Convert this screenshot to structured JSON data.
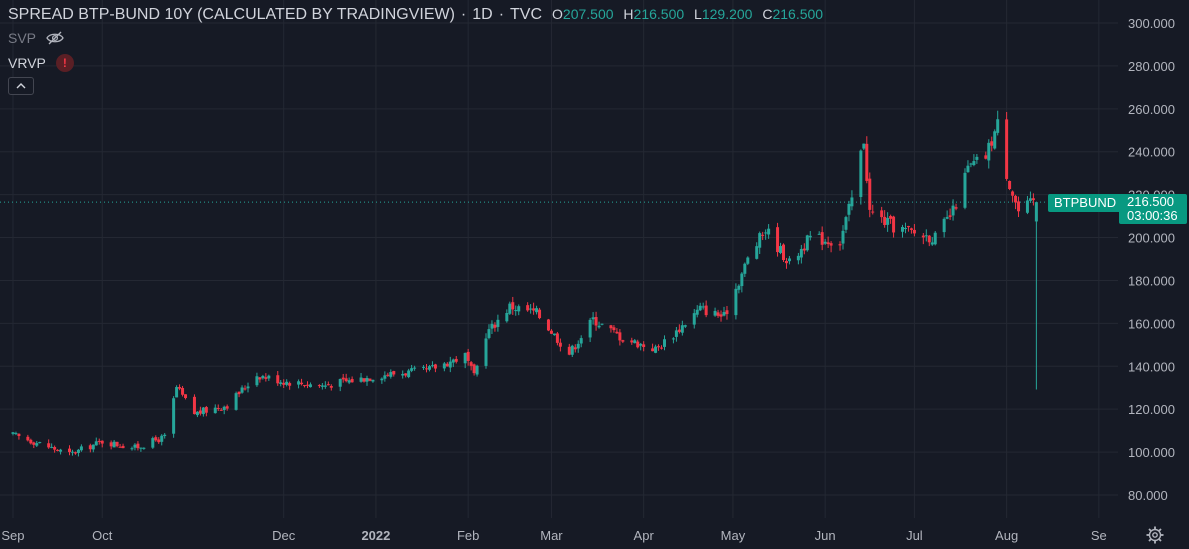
{
  "legend": {
    "title": "SPREAD BTP-BUND 10Y (CALCULATED BY TRADINGVIEW)",
    "interval": "1D",
    "exchange": "TVC",
    "o_label": "O",
    "o_value": "207.500",
    "h_label": "H",
    "h_value": "216.500",
    "l_label": "L",
    "l_value": "129.200",
    "c_label": "C",
    "c_value": "216.500"
  },
  "indicators": [
    {
      "name": "SVP",
      "icon": "eye-off-icon"
    },
    {
      "name": "VRVP",
      "icon": "warning-icon",
      "badge": "!"
    }
  ],
  "price_label": {
    "symbol": "BTPBUND",
    "price": "216.500",
    "countdown": "03:00:36"
  },
  "colors": {
    "background": "#161a25",
    "grid": "#242833",
    "up": "#26a69a",
    "down": "#f23645",
    "text": "#d1d4dc",
    "axis_text": "#b2b5be"
  },
  "chart_data": {
    "type": "candlestick",
    "title": "SPREAD BTP-BUND 10Y (CALCULATED BY TRADINGVIEW)",
    "ylim": [
      72,
      306
    ],
    "y_ticks": [
      "300.000",
      "280.000",
      "260.000",
      "240.000",
      "220.000",
      "200.000",
      "180.000",
      "160.000",
      "140.000",
      "120.000",
      "100.000",
      "80.000"
    ],
    "x_tick_labels": [
      "Sep",
      "Oct",
      "Dec",
      "2022",
      "Feb",
      "Mar",
      "Apr",
      "May",
      "Jun",
      "Jul",
      "Aug",
      "Se"
    ],
    "grid": true,
    "anchors": [
      [
        "2021-09-01",
        108
      ],
      [
        "2021-09-10",
        104
      ],
      [
        "2021-09-20",
        99
      ],
      [
        "2021-10-01",
        105
      ],
      [
        "2021-10-12",
        102
      ],
      [
        "2021-10-22",
        107
      ],
      [
        "2021-10-26",
        130
      ],
      [
        "2021-11-01",
        118
      ],
      [
        "2021-11-12",
        122
      ],
      [
        "2021-11-22",
        136
      ],
      [
        "2021-12-01",
        133
      ],
      [
        "2021-12-14",
        131
      ],
      [
        "2022-01-03",
        136
      ],
      [
        "2022-01-18",
        138
      ],
      [
        "2022-01-31",
        145
      ],
      [
        "2022-02-03",
        135
      ],
      [
        "2022-02-07",
        155
      ],
      [
        "2022-02-15",
        168
      ],
      [
        "2022-02-24",
        165
      ],
      [
        "2022-03-07",
        146
      ],
      [
        "2022-03-15",
        162
      ],
      [
        "2022-03-25",
        153
      ],
      [
        "2022-04-05",
        148
      ],
      [
        "2022-04-11",
        155
      ],
      [
        "2022-04-20",
        167
      ],
      [
        "2022-04-28",
        163
      ],
      [
        "2022-05-06",
        190
      ],
      [
        "2022-05-12",
        204
      ],
      [
        "2022-05-20",
        188
      ],
      [
        "2022-05-27",
        200
      ],
      [
        "2022-06-06",
        198
      ],
      [
        "2022-06-10",
        218
      ],
      [
        "2022-06-14",
        246
      ],
      [
        "2022-06-16",
        212
      ],
      [
        "2022-06-24",
        205
      ],
      [
        "2022-07-01",
        202
      ],
      [
        "2022-07-08",
        200
      ],
      [
        "2022-07-14",
        212
      ],
      [
        "2022-07-19",
        232
      ],
      [
        "2022-07-25",
        238
      ],
      [
        "2022-07-29",
        253
      ],
      [
        "2022-08-01",
        230
      ],
      [
        "2022-08-05",
        212
      ],
      [
        "2022-08-10",
        216.5
      ]
    ],
    "last_candle": {
      "date": "2022-08-11",
      "open": 207.5,
      "high": 216.5,
      "low": 129.2,
      "close": 216.5
    }
  }
}
